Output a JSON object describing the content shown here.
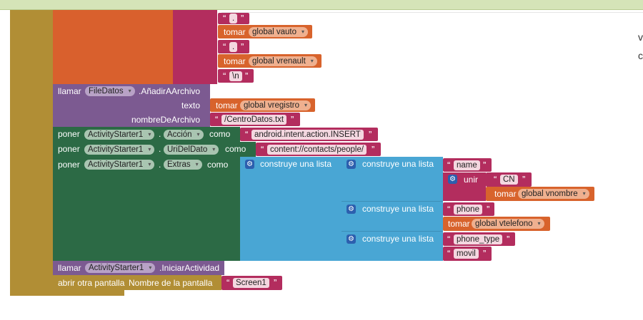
{
  "top_blocks": [
    {
      "id": "dot1",
      "kind": "text",
      "value": "."
    },
    {
      "id": "vauto",
      "kind": "get",
      "keyword": "tomar",
      "var": "global vauto"
    },
    {
      "id": "dot2",
      "kind": "text",
      "value": "."
    },
    {
      "id": "vrenault",
      "kind": "get",
      "keyword": "tomar",
      "var": "global vrenault"
    },
    {
      "id": "newline",
      "kind": "text",
      "value": "\\n"
    }
  ],
  "append_block": {
    "call": "llamar",
    "component": "FileDatos",
    "method": ".AñadirAArchivo",
    "arg1_label": "texto",
    "arg1_get": "tomar",
    "arg1_var": "global vregistro",
    "arg2_label": "nombreDeArchivo",
    "arg2_text": "/CentroDatos.txt"
  },
  "set_blocks": [
    {
      "set": "poner",
      "component": "ActivityStarter1",
      "dot": ".",
      "prop": "Acción",
      "to": "como",
      "value": "android.intent.action.INSERT"
    },
    {
      "set": "poner",
      "component": "ActivityStarter1",
      "dot": ".",
      "prop": "UriDelDato",
      "to": "como",
      "value": "content://contacts/people/"
    },
    {
      "set": "poner",
      "component": "ActivityStarter1",
      "dot": ".",
      "prop": "Extras",
      "to": "como"
    }
  ],
  "lists": {
    "outer": "construye una lista",
    "inner1": "construye una lista",
    "inner2": "construye una lista",
    "inner3": "construye una lista",
    "name_key": "name",
    "join_label": "unir",
    "cn": "CN",
    "nombre_get": "tomar",
    "nombre_var": "global vnombre",
    "phone_key": "phone",
    "telefono_get": "tomar",
    "telefono_var": "global vtelefono",
    "phone_type_key": "phone_type",
    "movil": "movil"
  },
  "start_block": {
    "call": "llamar",
    "component": "ActivityStarter1",
    "method": ".IniciarActividad"
  },
  "open_screen": {
    "label": "abrir otra pantalla",
    "arg": "Nombre de la pantalla",
    "value": "Screen1"
  },
  "quote": "“",
  "quote_close": "”",
  "dropdown_arrow": "▾",
  "gear_icon": "⚙",
  "side_chars": [
    "v",
    "c"
  ],
  "colors": {
    "event_gold": "#b18e35",
    "text_magenta": "#b32d5e",
    "get_orange": "#d8632c",
    "call_purple": "#7c5a91",
    "set_green": "#2c6a45",
    "list_cyan": "#49a6d4"
  }
}
